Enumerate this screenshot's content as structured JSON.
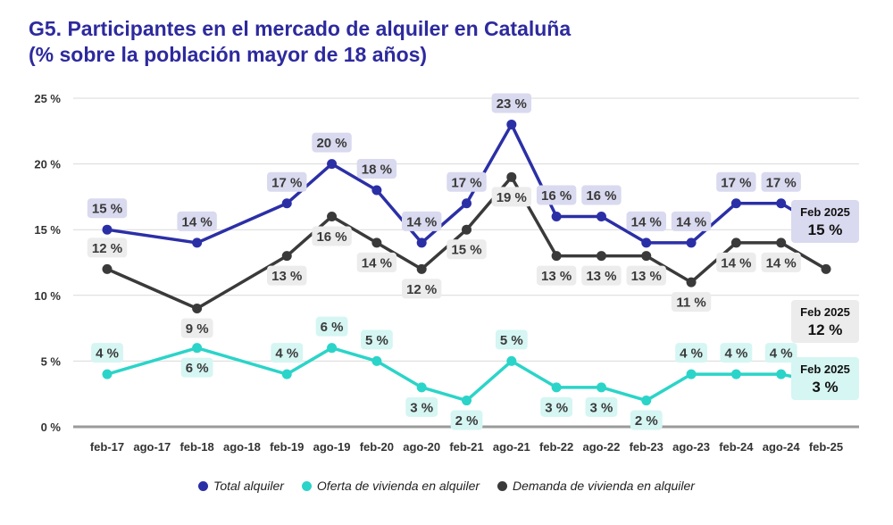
{
  "chart_data": {
    "type": "line",
    "title_line1": "G5. Participantes en el mercado de alquiler en Cataluña",
    "title_line2": "(% sobre la población mayor de 18 años)",
    "categories": [
      "feb-17",
      "ago-17",
      "feb-18",
      "ago-18",
      "feb-19",
      "ago-19",
      "feb-20",
      "ago-20",
      "feb-21",
      "ago-21",
      "feb-22",
      "ago-22",
      "feb-23",
      "ago-23",
      "feb-24",
      "ago-24",
      "feb-25"
    ],
    "y_ticks": [
      "0 %",
      "5 %",
      "10 %",
      "15 %",
      "20 %",
      "25 %"
    ],
    "ylim": [
      0,
      25
    ],
    "series": [
      {
        "name": "Total alquiler",
        "color": "#2b2fa6",
        "label_bg": "#d9d9ef",
        "points": [
          [
            "feb-17",
            15,
            "15 %"
          ],
          [
            "feb-18",
            14,
            "14 %"
          ],
          [
            "feb-19",
            17,
            "17 %"
          ],
          [
            "ago-19",
            20,
            "20 %"
          ],
          [
            "feb-20",
            18,
            "18 %"
          ],
          [
            "ago-20",
            14,
            "14 %"
          ],
          [
            "feb-21",
            17,
            "17 %"
          ],
          [
            "ago-21",
            23,
            "23 %"
          ],
          [
            "feb-22",
            16,
            "16 %"
          ],
          [
            "ago-22",
            16,
            "16 %"
          ],
          [
            "feb-23",
            14,
            "14 %"
          ],
          [
            "ago-23",
            14,
            "14 %"
          ],
          [
            "feb-24",
            17,
            "17 %"
          ],
          [
            "ago-24",
            17,
            "17 %"
          ],
          [
            "feb-25",
            15,
            "15 %"
          ]
        ]
      },
      {
        "name": "Oferta de vivienda en alquiler",
        "color": "#2bd4c8",
        "label_bg": "#d5f6f3",
        "points": [
          [
            "feb-17",
            4,
            "4 %"
          ],
          [
            "feb-18",
            6,
            "6 %"
          ],
          [
            "feb-19",
            4,
            "4 %"
          ],
          [
            "ago-19",
            6,
            "6 %"
          ],
          [
            "feb-20",
            5,
            "5 %"
          ],
          [
            "ago-20",
            3,
            "3 %"
          ],
          [
            "feb-21",
            2,
            "2 %"
          ],
          [
            "ago-21",
            5,
            "5 %"
          ],
          [
            "feb-22",
            3,
            "3 %"
          ],
          [
            "ago-22",
            3,
            "3 %"
          ],
          [
            "feb-23",
            2,
            "2 %"
          ],
          [
            "ago-23",
            4,
            "4 %"
          ],
          [
            "feb-24",
            4,
            "4 %"
          ],
          [
            "ago-24",
            4,
            "4 %"
          ],
          [
            "feb-25",
            3.3,
            "3 %"
          ]
        ]
      },
      {
        "name": "Demanda de vivienda en alquiler",
        "color": "#3a3a3a",
        "label_bg": "#ececec",
        "points": [
          [
            "feb-17",
            12,
            "12 %"
          ],
          [
            "feb-18",
            9,
            "9 %"
          ],
          [
            "feb-19",
            13,
            "13 %"
          ],
          [
            "ago-19",
            16,
            "16 %"
          ],
          [
            "feb-20",
            14,
            "14 %"
          ],
          [
            "ago-20",
            12,
            "12 %"
          ],
          [
            "feb-21",
            15,
            "15 %"
          ],
          [
            "ago-21",
            19,
            "19 %"
          ],
          [
            "feb-22",
            13,
            "13 %"
          ],
          [
            "ago-22",
            13,
            "13 %"
          ],
          [
            "feb-23",
            13,
            "13 %"
          ],
          [
            "ago-23",
            11,
            "11 %"
          ],
          [
            "feb-24",
            14,
            "14 %"
          ],
          [
            "ago-24",
            14,
            "14 %"
          ],
          [
            "feb-25",
            12,
            "12 %"
          ]
        ]
      }
    ],
    "end_labels": [
      {
        "series": "Total alquiler",
        "line1": "Feb 2025",
        "line2": "15 %"
      },
      {
        "series": "Demanda de vivienda en alquiler",
        "line1": "Feb 2025",
        "line2": "12 %"
      },
      {
        "series": "Oferta de vivienda en alquiler",
        "line1": "Feb 2025",
        "line2": "3 %"
      }
    ],
    "legend_position": "bottom"
  }
}
